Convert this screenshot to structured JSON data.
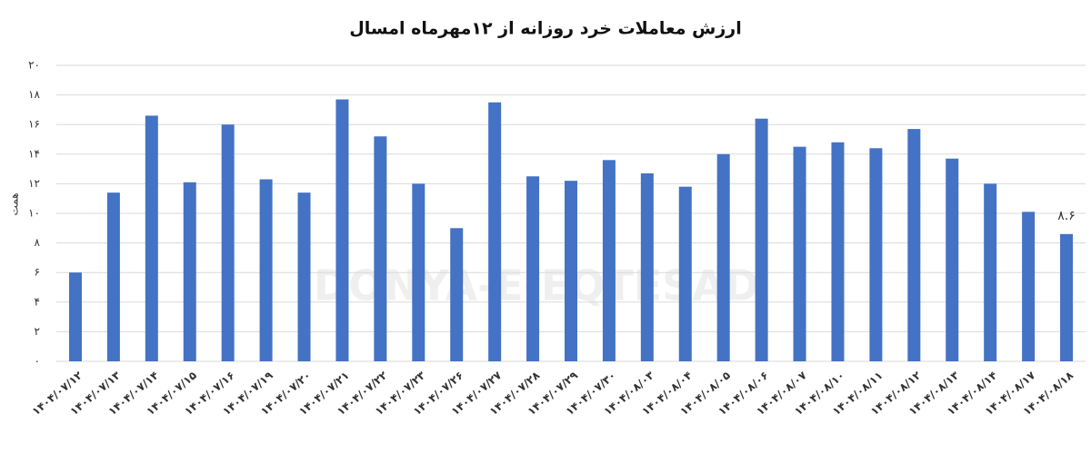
{
  "chart_data": {
    "type": "bar",
    "title": "ارزش معاملات خرد روزانه از ۱۲مهرماه امسال",
    "y_label": "همت",
    "watermark": "DONYA-E-EQTESAD",
    "categories": [
      "۱۴۰۴/۰۷/۱۲",
      "۱۴۰۴/۰۷/۱۳",
      "۱۴۰۴/۰۷/۱۴",
      "۱۴۰۴/۰۷/۱۵",
      "۱۴۰۴/۰۷/۱۶",
      "۱۴۰۴/۰۷/۱۹",
      "۱۴۰۴/۰۷/۲۰",
      "۱۴۰۴/۰۷/۲۱",
      "۱۴۰۴/۰۷/۲۲",
      "۱۴۰۴/۰۷/۲۳",
      "۱۴۰۴/۰۷/۲۶",
      "۱۴۰۴/۰۷/۲۷",
      "۱۴۰۴/۰۷/۲۸",
      "۱۴۰۴/۰۷/۲۹",
      "۱۴۰۴/۰۷/۳۰",
      "۱۴۰۴/۰۸/۰۳",
      "۱۴۰۴/۰۸/۰۴",
      "۱۴۰۴/۰۸/۰۵",
      "۱۴۰۴/۰۸/۰۶",
      "۱۴۰۴/۰۸/۰۷",
      "۱۴۰۴/۰۸/۱۰",
      "۱۴۰۴/۰۸/۱۱",
      "۱۴۰۴/۰۸/۱۲",
      "۱۴۰۴/۰۸/۱۳",
      "۱۴۰۴/۰۸/۱۴",
      "۱۴۰۴/۰۸/۱۷",
      "۱۴۰۴/۰۸/۱۸"
    ],
    "values": [
      6.0,
      11.4,
      16.6,
      12.1,
      16.0,
      12.3,
      11.4,
      17.7,
      15.2,
      12.0,
      9.0,
      17.5,
      12.5,
      12.2,
      13.6,
      12.7,
      11.8,
      14.0,
      16.4,
      14.5,
      14.8,
      14.4,
      15.7,
      13.7,
      12.0,
      10.1,
      8.6
    ],
    "value_labels": [
      null,
      null,
      null,
      null,
      null,
      null,
      null,
      null,
      null,
      null,
      null,
      null,
      null,
      null,
      null,
      null,
      null,
      null,
      null,
      null,
      null,
      null,
      null,
      null,
      null,
      null,
      "۸.۶"
    ],
    "color": "#4472c4",
    "ylim": [
      0,
      20
    ],
    "yticks": [
      {
        "value": 0,
        "label": "۰"
      },
      {
        "value": 2,
        "label": "۲"
      },
      {
        "value": 4,
        "label": "۴"
      },
      {
        "value": 6,
        "label": "۶"
      },
      {
        "value": 8,
        "label": "۸"
      },
      {
        "value": 10,
        "label": "۱۰"
      },
      {
        "value": 12,
        "label": "۱۲"
      },
      {
        "value": 14,
        "label": "۱۴"
      },
      {
        "value": 16,
        "label": "۱۶"
      },
      {
        "value": 18,
        "label": "۱۸"
      },
      {
        "value": 20,
        "label": "۲۰"
      }
    ],
    "grid": true
  }
}
